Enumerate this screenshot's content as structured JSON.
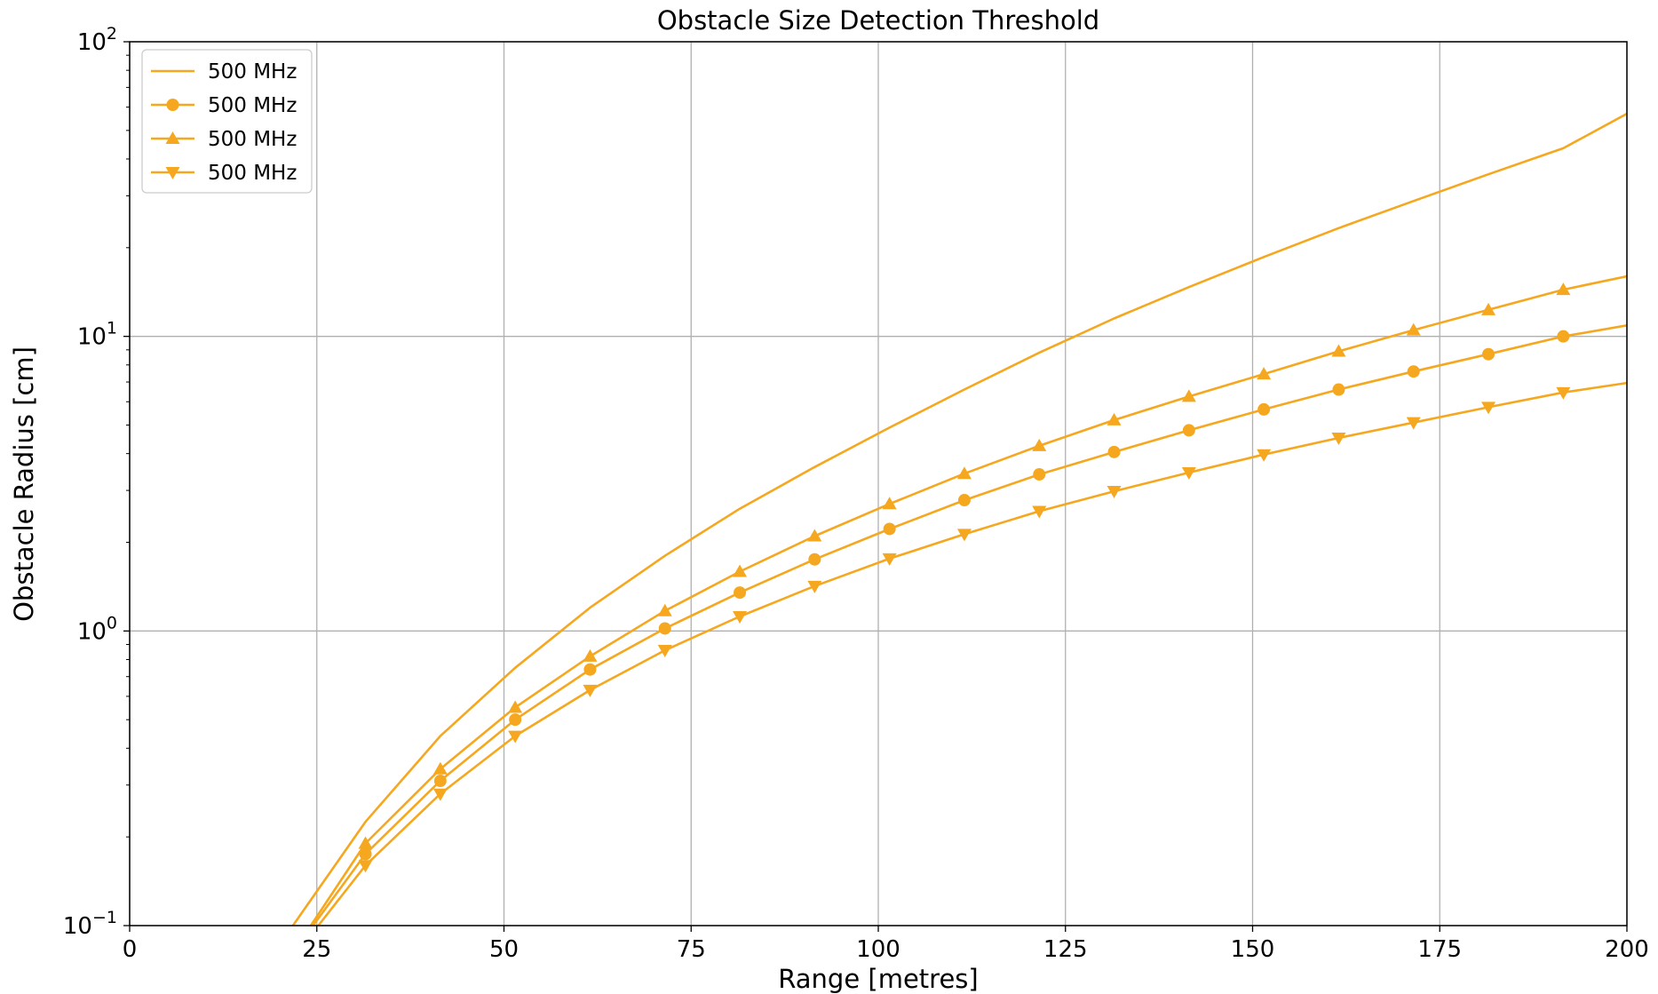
{
  "chart_data": {
    "type": "line",
    "title": "Obstacle Size Detection Threshold",
    "xlabel": "Range [metres]",
    "ylabel": "Obstacle Radius [cm]",
    "xlim": [
      0,
      200
    ],
    "ylim": [
      0.1,
      100
    ],
    "yscale": "log",
    "grid": true,
    "legend_position": "top-left",
    "color": "#f5a81f",
    "x_ticks": [
      "0",
      "25",
      "50",
      "75",
      "100",
      "125",
      "150",
      "175",
      "200"
    ],
    "y_ticks": [
      {
        "base": "10",
        "exp": "−1"
      },
      {
        "base": "10",
        "exp": "0"
      },
      {
        "base": "10",
        "exp": "1"
      },
      {
        "base": "10",
        "exp": "2"
      }
    ],
    "series": [
      {
        "name": "500 MHz",
        "marker": "none",
        "x": [
          21.8,
          31.5,
          41.5,
          51.5,
          61.5,
          71.5,
          81.5,
          91.5,
          101.5,
          111.5,
          121.5,
          131.5,
          141.5,
          151.5,
          161.5,
          171.5,
          181.5,
          191.5,
          200
        ],
        "y": [
          0.1,
          0.225,
          0.44,
          0.75,
          1.2,
          1.8,
          2.6,
          3.6,
          4.9,
          6.6,
          8.8,
          11.5,
          14.7,
          18.6,
          23.3,
          28.8,
          35.5,
          43.5,
          57
        ]
      },
      {
        "name": "500 MHz",
        "marker": "circle",
        "x": [
          24.5,
          31.5,
          41.5,
          51.5,
          61.5,
          71.5,
          81.5,
          91.5,
          101.5,
          111.5,
          121.5,
          131.5,
          141.5,
          151.5,
          161.5,
          171.5,
          181.5,
          191.5,
          200
        ],
        "y": [
          0.1,
          0.175,
          0.31,
          0.5,
          0.74,
          1.02,
          1.35,
          1.75,
          2.22,
          2.78,
          3.4,
          4.05,
          4.8,
          5.65,
          6.6,
          7.6,
          8.7,
          10.0,
          10.9
        ],
        "marker_from_index": 1,
        "marker_to_index": 17
      },
      {
        "name": "500 MHz",
        "marker": "triangle-up",
        "x": [
          24.2,
          31.5,
          41.5,
          51.5,
          61.5,
          71.5,
          81.5,
          91.5,
          101.5,
          111.5,
          121.5,
          131.5,
          141.5,
          151.5,
          161.5,
          171.5,
          181.5,
          191.5,
          200
        ],
        "y": [
          0.1,
          0.19,
          0.34,
          0.55,
          0.82,
          1.17,
          1.59,
          2.1,
          2.7,
          3.42,
          4.25,
          5.2,
          6.25,
          7.45,
          8.9,
          10.5,
          12.3,
          14.4,
          16.0
        ],
        "marker_from_index": 1,
        "marker_to_index": 17
      },
      {
        "name": "500 MHz",
        "marker": "triangle-down",
        "x": [
          25.2,
          31.5,
          41.5,
          51.5,
          61.5,
          71.5,
          81.5,
          91.5,
          101.5,
          111.5,
          121.5,
          131.5,
          141.5,
          151.5,
          161.5,
          171.5,
          181.5,
          191.5,
          200
        ],
        "y": [
          0.1,
          0.16,
          0.28,
          0.44,
          0.63,
          0.86,
          1.12,
          1.42,
          1.76,
          2.13,
          2.55,
          2.98,
          3.45,
          3.97,
          4.52,
          5.1,
          5.75,
          6.45,
          6.95
        ],
        "marker_from_index": 1,
        "marker_to_index": 17
      }
    ]
  }
}
